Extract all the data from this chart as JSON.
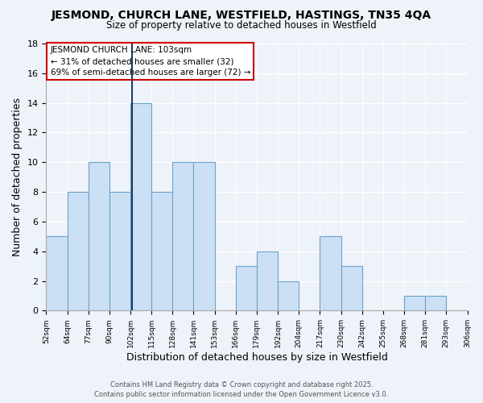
{
  "title": "JESMOND, CHURCH LANE, WESTFIELD, HASTINGS, TN35 4QA",
  "subtitle": "Size of property relative to detached houses in Westfield",
  "xlabel": "Distribution of detached houses by size in Westfield",
  "ylabel": "Number of detached properties",
  "bar_color": "#cce0f5",
  "bar_edge_color": "#6ba3cc",
  "bin_edges": [
    "52sqm",
    "64sqm",
    "77sqm",
    "90sqm",
    "102sqm",
    "115sqm",
    "128sqm",
    "141sqm",
    "153sqm",
    "166sqm",
    "179sqm",
    "192sqm",
    "204sqm",
    "217sqm",
    "230sqm",
    "242sqm",
    "255sqm",
    "268sqm",
    "281sqm",
    "293sqm",
    "306sqm"
  ],
  "values": [
    5,
    8,
    10,
    8,
    14,
    8,
    10,
    10,
    0,
    3,
    4,
    2,
    0,
    5,
    3,
    0,
    0,
    1,
    1,
    0
  ],
  "ylim": [
    0,
    18
  ],
  "yticks": [
    0,
    2,
    4,
    6,
    8,
    10,
    12,
    14,
    16,
    18
  ],
  "annotation_text": "JESMOND CHURCH LANE: 103sqm\n← 31% of detached houses are smaller (32)\n69% of semi-detached houses are larger (72) →",
  "annotation_box_color": "#ffffff",
  "annotation_box_edge": "#cc0000",
  "marker_line_color": "#1a3a6b",
  "footer_line1": "Contains HM Land Registry data © Crown copyright and database right 2025.",
  "footer_line2": "Contains public sector information licensed under the Open Government Licence v3.0.",
  "bg_color": "#eef2f9",
  "grid_color": "#ffffff"
}
